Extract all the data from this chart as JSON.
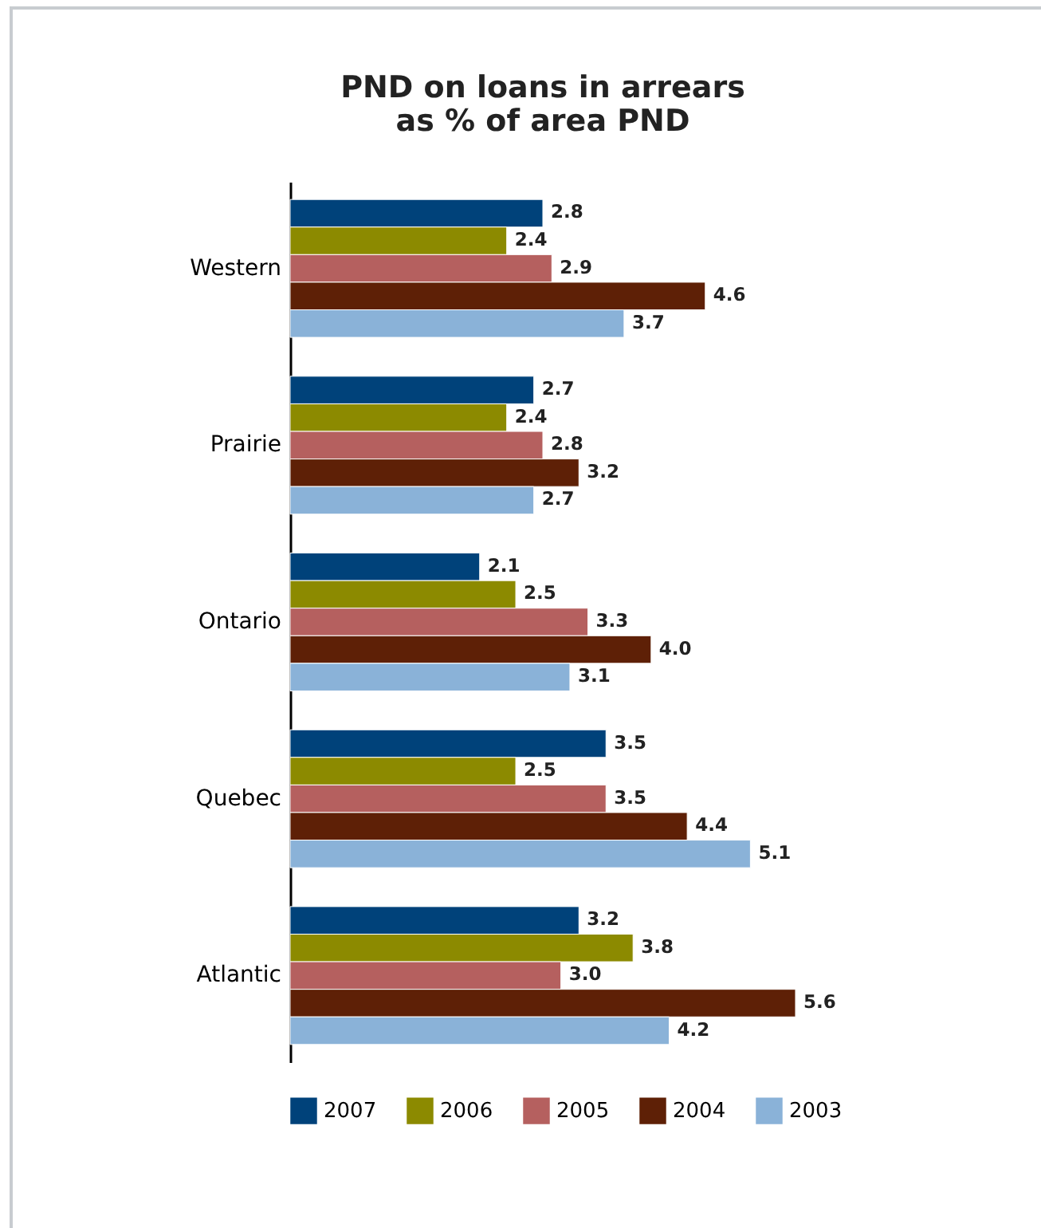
{
  "chart_data": {
    "type": "bar",
    "orientation": "horizontal",
    "title": "PND on loans in arrears\nas % of area PND",
    "categories": [
      "Western",
      "Prairie",
      "Ontario",
      "Quebec",
      "Atlantic"
    ],
    "legend": "bottom",
    "series": [
      {
        "name": "2007",
        "color": "#00427a",
        "values": [
          2.8,
          2.7,
          2.1,
          3.5,
          3.2
        ],
        "value_labels": [
          "2.8",
          "2.7",
          "2.1",
          "3.5",
          "3.2"
        ]
      },
      {
        "name": "2006",
        "color": "#8c8a00",
        "values": [
          2.4,
          2.4,
          2.5,
          2.5,
          3.8
        ],
        "value_labels": [
          "2.4",
          "2.4",
          "2.5",
          "2.5",
          "3.8"
        ]
      },
      {
        "name": "2005",
        "color": "#b5605f",
        "values": [
          2.9,
          2.8,
          3.3,
          3.5,
          3.0
        ],
        "value_labels": [
          "2.9",
          "2.8",
          "3.3",
          "3.5",
          "3.0"
        ]
      },
      {
        "name": "2004",
        "color": "#5e2006",
        "values": [
          4.6,
          3.2,
          4.0,
          4.4,
          5.6
        ],
        "value_labels": [
          "4.6",
          "3.2",
          "4.0",
          "4.4",
          "5.6"
        ]
      },
      {
        "name": "2003",
        "color": "#8ab2d8",
        "values": [
          3.7,
          2.7,
          3.1,
          5.1,
          4.2
        ],
        "value_labels": [
          "3.7",
          "2.7",
          "3.1",
          "5.1",
          "4.2"
        ]
      }
    ]
  }
}
